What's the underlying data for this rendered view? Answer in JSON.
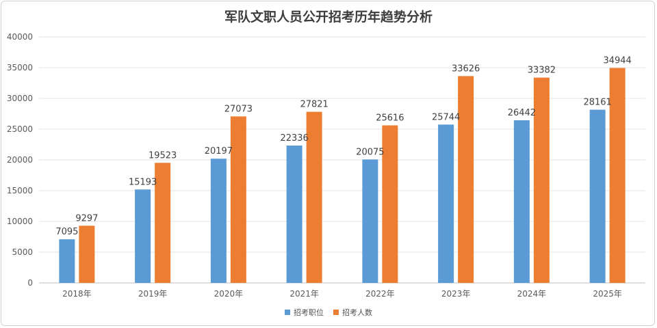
{
  "chart_data": {
    "type": "bar",
    "title": "军队文职人员公开招考历年趋势分析",
    "categories": [
      "2018年",
      "2019年",
      "2020年",
      "2021年",
      "2022年",
      "2023年",
      "2024年",
      "2025年"
    ],
    "series": [
      {
        "name": "招考职位",
        "color": "#5b9bd5",
        "values": [
          7095,
          15193,
          20197,
          22336,
          20075,
          25744,
          26442,
          28161
        ]
      },
      {
        "name": "招考人数",
        "color": "#ed7d31",
        "values": [
          9297,
          19523,
          27073,
          27821,
          25616,
          33626,
          33382,
          34944
        ]
      }
    ],
    "ylim": [
      0,
      40000
    ],
    "yticks": [
      0,
      5000,
      10000,
      15000,
      20000,
      25000,
      30000,
      35000,
      40000
    ],
    "grid": true,
    "legend_position": "bottom"
  }
}
